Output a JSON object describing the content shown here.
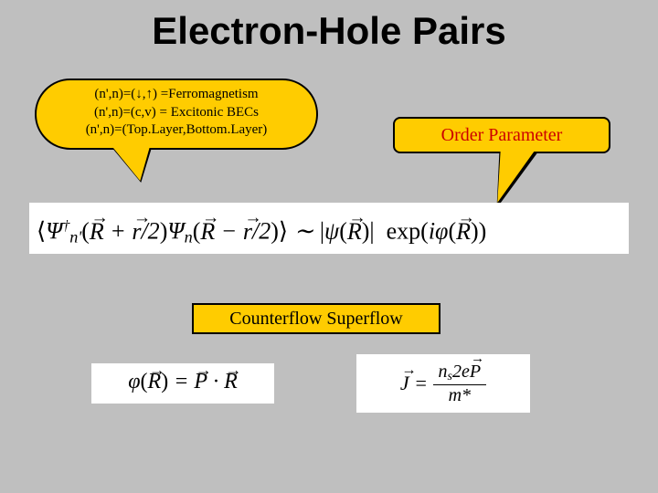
{
  "colors": {
    "background": "#bfbfbf",
    "callout_fill": "#ffcc00",
    "callout_border": "#000000",
    "order_param_text": "#cc0000",
    "equation_bg": "#ffffff"
  },
  "title": "Electron-Hole Pairs",
  "callout_left": {
    "line1": "(n',n)=(↓,↑) =Ferromagnetism",
    "line2": "(n',n)=(c,v) = Excitonic BECs",
    "line3": "(n',n)=(Top.Layer,Bottom.Layer)"
  },
  "callout_right": "Order Parameter",
  "equation_main": "⟨Ψ†_{n'}(R + r/2) Ψ_n(R − r/2)⟩ ∼ |ψ(R)|  exp(iφ(R))",
  "label_counterflow": "Counterflow Superflow",
  "equation_phi": "φ(R) = P · R",
  "equation_J": "J = (n_s 2eP)/m*"
}
